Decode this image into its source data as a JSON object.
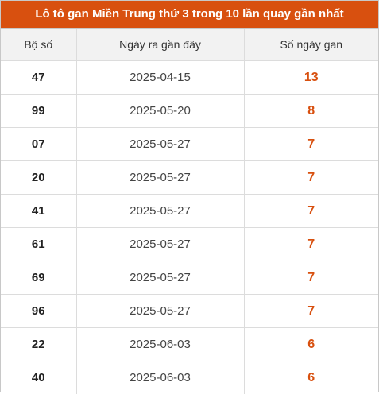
{
  "title": "Lô tô gan Miền Trung thứ 3 trong 10 lần quay gần nhất",
  "columns": {
    "number": "Bộ số",
    "last_date": "Ngày ra gần đây",
    "days": "Số ngày gan"
  },
  "accent_color": "#d8500f",
  "rows": [
    {
      "number": "47",
      "last_date": "2025-04-15",
      "days": "13"
    },
    {
      "number": "99",
      "last_date": "2025-05-20",
      "days": "8"
    },
    {
      "number": "07",
      "last_date": "2025-05-27",
      "days": "7"
    },
    {
      "number": "20",
      "last_date": "2025-05-27",
      "days": "7"
    },
    {
      "number": "41",
      "last_date": "2025-05-27",
      "days": "7"
    },
    {
      "number": "61",
      "last_date": "2025-05-27",
      "days": "7"
    },
    {
      "number": "69",
      "last_date": "2025-05-27",
      "days": "7"
    },
    {
      "number": "96",
      "last_date": "2025-05-27",
      "days": "7"
    },
    {
      "number": "22",
      "last_date": "2025-06-03",
      "days": "6"
    },
    {
      "number": "40",
      "last_date": "2025-06-03",
      "days": "6"
    }
  ]
}
